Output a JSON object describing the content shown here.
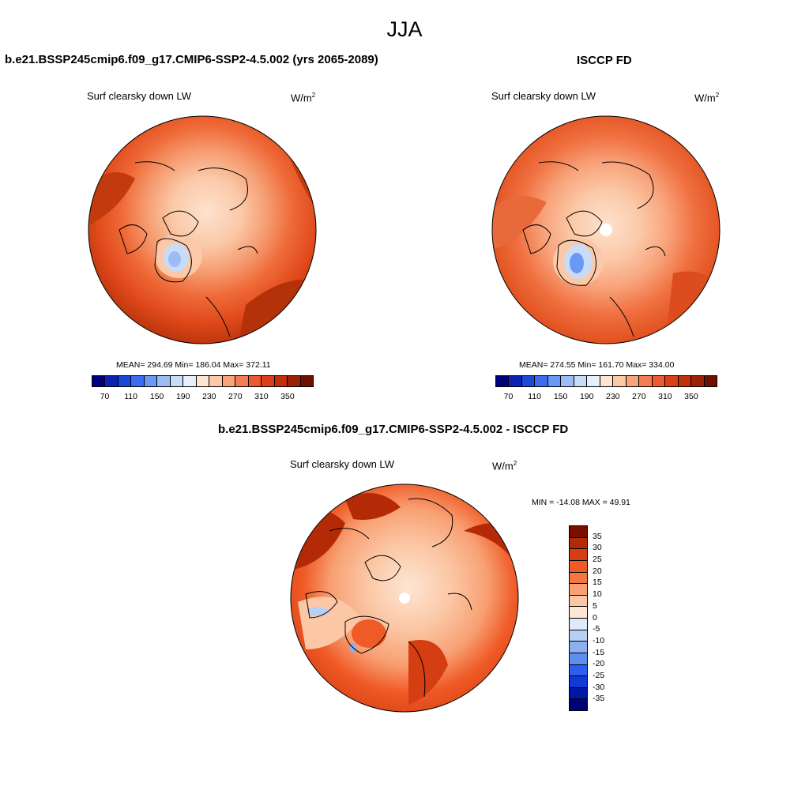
{
  "page": {
    "season": "JJA"
  },
  "panel_model": {
    "case_title": "b.e21.BSSP245cmip6.f09_g17.CMIP6-SSP2-4.5.002 (yrs 2065-2089)",
    "variable": "Surf clearsky down LW",
    "units_base": "W/m",
    "units_exp": "2",
    "stats": "MEAN= 294.69  Min= 186.04  Max= 372.11"
  },
  "panel_obs": {
    "case_title": "ISCCP FD",
    "variable": "Surf clearsky down LW",
    "units_base": "W/m",
    "units_exp": "2",
    "stats": "MEAN= 274.55  Min= 161.70  Max= 334.00"
  },
  "panel_diff": {
    "case_title": "b.e21.BSSP245cmip6.f09_g17.CMIP6-SSP2-4.5.002 - ISCCP FD",
    "variable": "Surf clearsky down LW",
    "units_base": "W/m",
    "units_exp": "2",
    "stats": "MIN = -14.08 MAX =  49.91"
  },
  "colorbar_abs": {
    "tick_labels": [
      "70",
      "110",
      "150",
      "190",
      "230",
      "270",
      "310",
      "350"
    ],
    "colors": [
      "#00007f",
      "#0c22b0",
      "#1a48d8",
      "#3b6cf0",
      "#6a98f5",
      "#9dbcf6",
      "#c8dcf7",
      "#e8eff8",
      "#fde5d3",
      "#fbc9a8",
      "#f8a47c",
      "#f47c52",
      "#ee5a30",
      "#dd3f16",
      "#c0300a",
      "#9b2206",
      "#6e0f00"
    ]
  },
  "colorbar_diff": {
    "tick_labels": [
      "35",
      "30",
      "25",
      "20",
      "15",
      "10",
      "5",
      "0",
      "-5",
      "-10",
      "-15",
      "-20",
      "-25",
      "-30",
      "-35"
    ],
    "colors": [
      "#7a0f00",
      "#b42a07",
      "#d53d12",
      "#ef5a26",
      "#f4773f",
      "#f8a073",
      "#fbc7a5",
      "#fde6d4",
      "#dfeaf8",
      "#b9d0f5",
      "#8cb0f2",
      "#5d8ef0",
      "#2c5ef0",
      "#1338d8",
      "#0018a8",
      "#00007a"
    ]
  },
  "colors": {
    "ocean_warm": "#e14a1c",
    "deep_warm": "#b5310a",
    "mid_warm": "#f07040",
    "light_warm": "#f9b38d",
    "pale_warm": "#fde2cf",
    "cool_blue": "#9fbcf6",
    "coast": "#000000"
  }
}
